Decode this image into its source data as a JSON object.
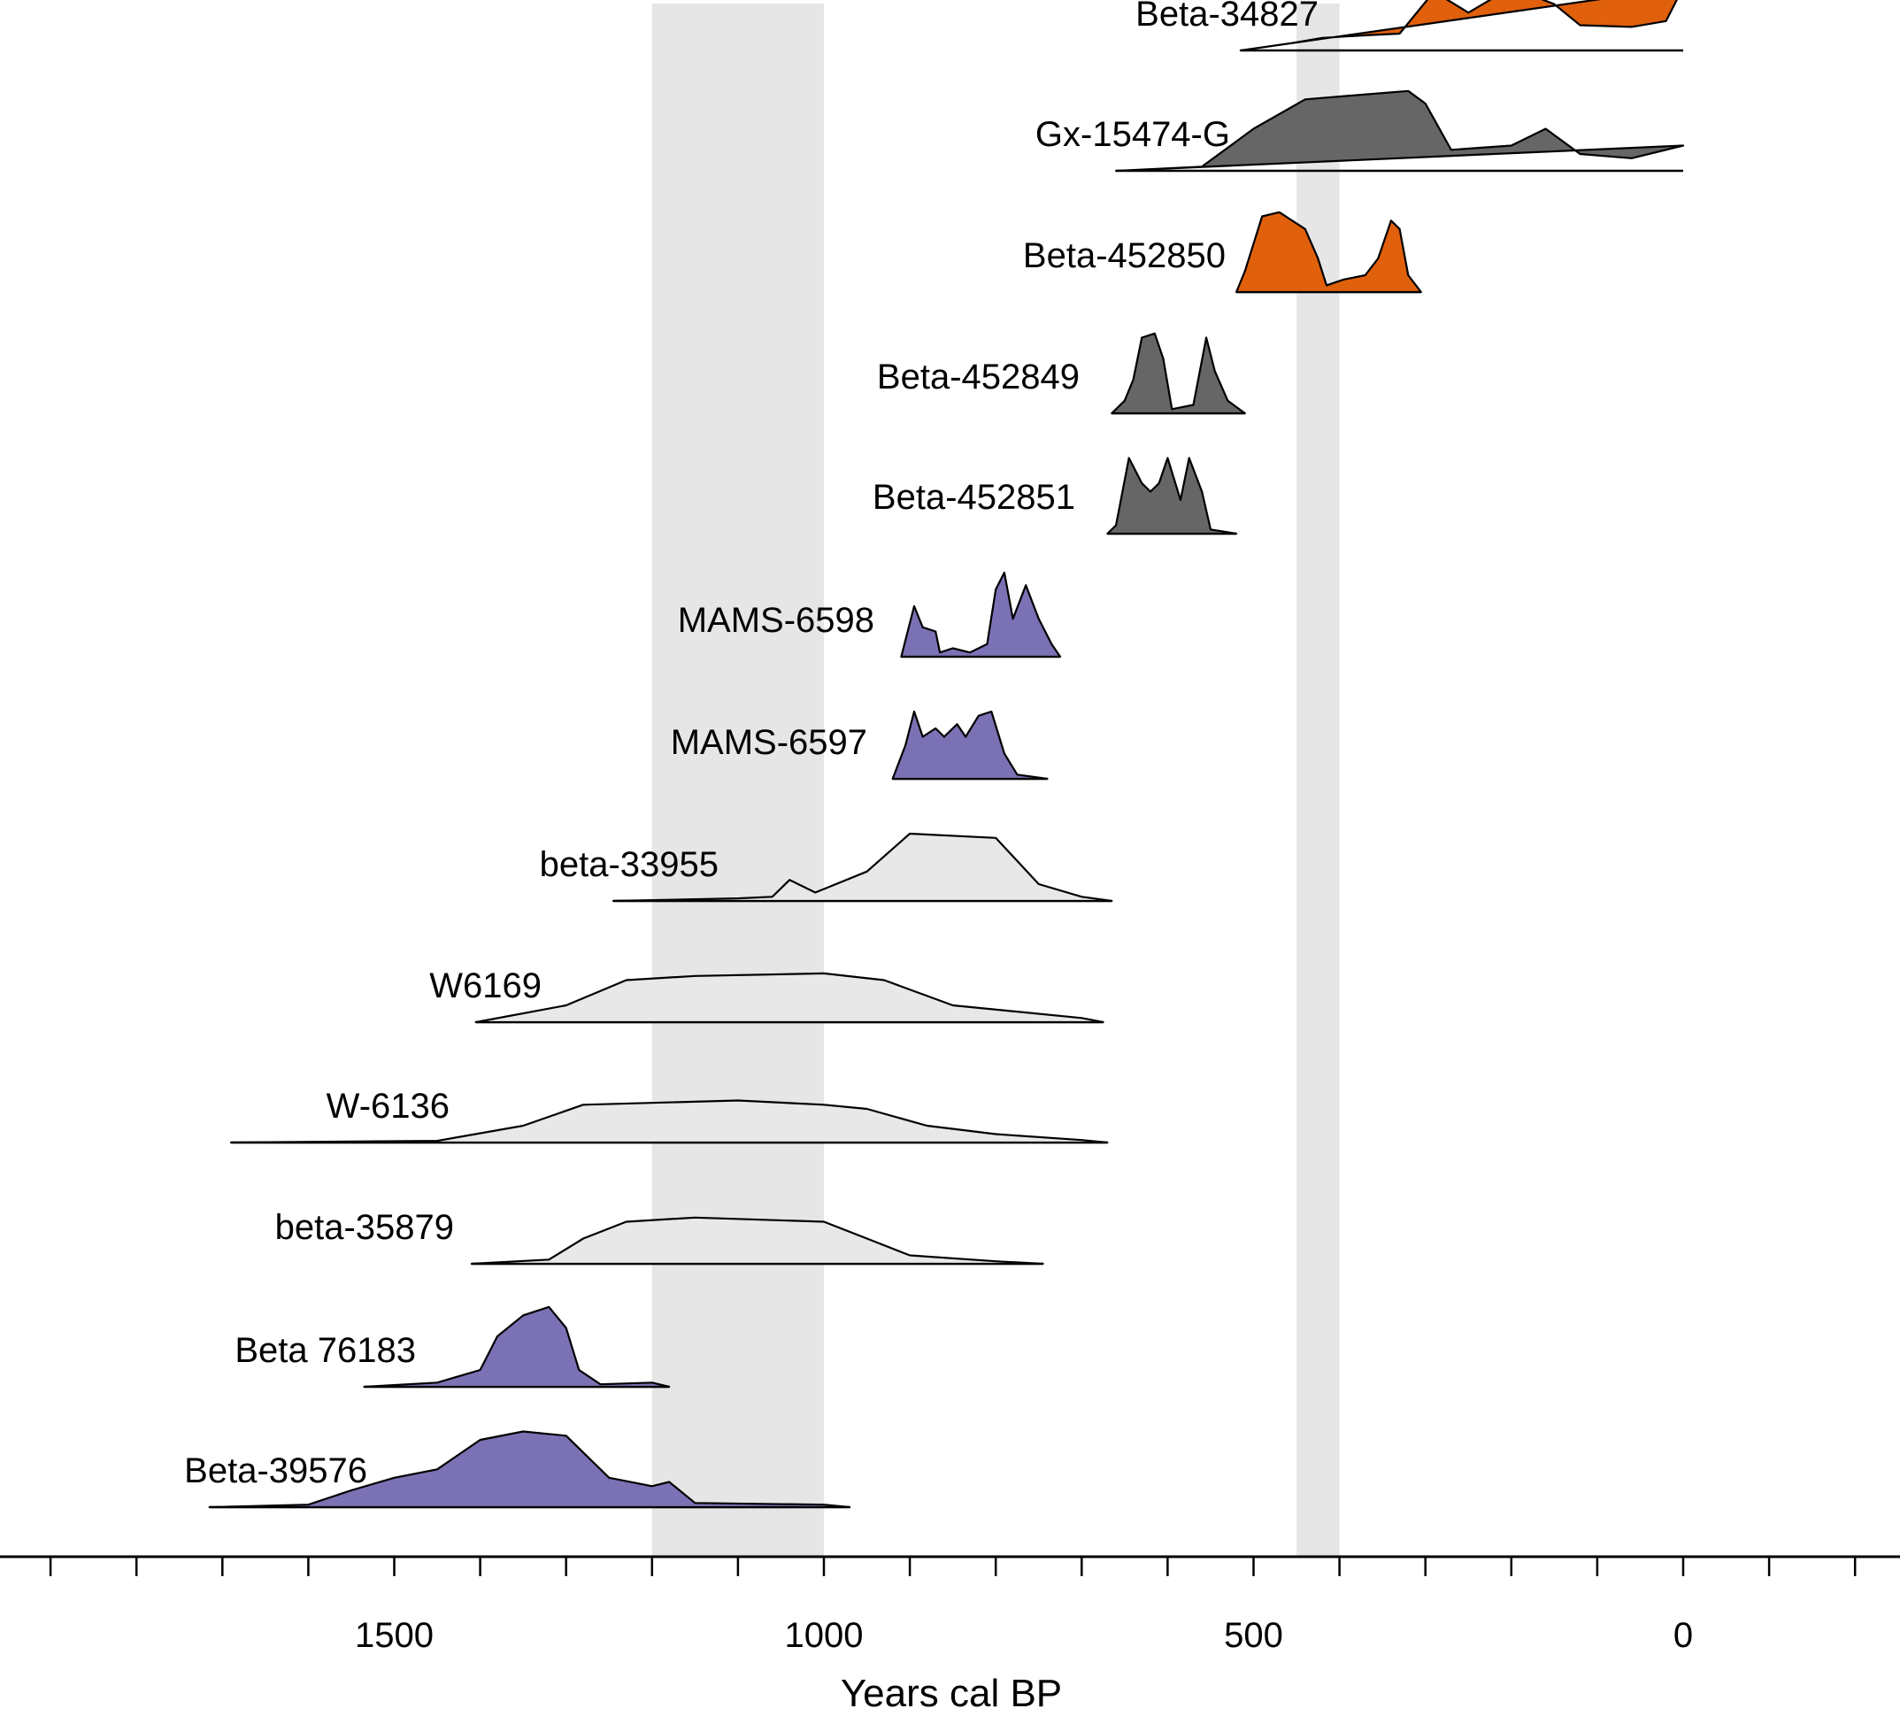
{
  "chart_data": {
    "type": "area",
    "title": "",
    "xlabel": "Years cal BP",
    "ylabel": "",
    "x_reversed": true,
    "xlim": [
      1910,
      -250
    ],
    "x_ticks": [
      1900,
      1800,
      1700,
      1600,
      1500,
      1400,
      1300,
      1200,
      1100,
      1000,
      900,
      800,
      700,
      600,
      500,
      400,
      300,
      200,
      100,
      0,
      -100,
      -200
    ],
    "x_tick_labels": [
      {
        "value": 1500,
        "text": "1500"
      },
      {
        "value": 1000,
        "text": "1000"
      },
      {
        "value": 500,
        "text": "500"
      },
      {
        "value": 0,
        "text": "0"
      }
    ],
    "grid": false,
    "legend": "none",
    "shaded_bands": [
      {
        "from": 1200,
        "to": 1000,
        "color": "#e6e6e6"
      },
      {
        "from": 450,
        "to": 400,
        "color": "#e6e6e6"
      }
    ],
    "colors": {
      "orange": "#e0600c",
      "dark": "#666666",
      "purple": "#7b72b5",
      "light": "#e8e8e8"
    },
    "series": [
      {
        "name": "Beta-34827",
        "color": "#e0600c",
        "range": [
          515,
          0
        ],
        "profile": [
          [
            515,
            0
          ],
          [
            460,
            0.08
          ],
          [
            420,
            0.15
          ],
          [
            370,
            0.18
          ],
          [
            330,
            0.2
          ],
          [
            290,
            0.7
          ],
          [
            250,
            0.45
          ],
          [
            200,
            0.75
          ],
          [
            150,
            0.55
          ],
          [
            120,
            0.3
          ],
          [
            60,
            0.28
          ],
          [
            20,
            0.35
          ],
          [
            0,
            0.75
          ]
        ]
      },
      {
        "name": "Gx-15474-G",
        "color": "#666666",
        "range": [
          660,
          0
        ],
        "profile": [
          [
            660,
            0
          ],
          [
            560,
            0.05
          ],
          [
            500,
            0.5
          ],
          [
            440,
            0.85
          ],
          [
            380,
            0.9
          ],
          [
            320,
            0.95
          ],
          [
            300,
            0.8
          ],
          [
            270,
            0.25
          ],
          [
            200,
            0.3
          ],
          [
            160,
            0.5
          ],
          [
            120,
            0.2
          ],
          [
            60,
            0.15
          ],
          [
            0,
            0.3
          ]
        ]
      },
      {
        "name": "Beta-452850",
        "color": "#e0600c",
        "range": [
          520,
          305
        ],
        "profile": [
          [
            520,
            0
          ],
          [
            510,
            0.25
          ],
          [
            490,
            0.9
          ],
          [
            470,
            0.95
          ],
          [
            440,
            0.75
          ],
          [
            425,
            0.4
          ],
          [
            415,
            0.08
          ],
          [
            395,
            0.15
          ],
          [
            370,
            0.2
          ],
          [
            355,
            0.4
          ],
          [
            340,
            0.85
          ],
          [
            330,
            0.75
          ],
          [
            320,
            0.2
          ],
          [
            305,
            0
          ]
        ]
      },
      {
        "name": "Beta-452849",
        "color": "#666666",
        "range": [
          665,
          510
        ],
        "profile": [
          [
            665,
            0
          ],
          [
            650,
            0.15
          ],
          [
            640,
            0.4
          ],
          [
            630,
            0.9
          ],
          [
            615,
            0.95
          ],
          [
            605,
            0.65
          ],
          [
            595,
            0.05
          ],
          [
            570,
            0.1
          ],
          [
            555,
            0.9
          ],
          [
            545,
            0.5
          ],
          [
            530,
            0.15
          ],
          [
            510,
            0
          ]
        ]
      },
      {
        "name": "Beta-452851",
        "color": "#666666",
        "range": [
          670,
          520
        ],
        "profile": [
          [
            670,
            0
          ],
          [
            660,
            0.1
          ],
          [
            645,
            0.9
          ],
          [
            630,
            0.6
          ],
          [
            620,
            0.5
          ],
          [
            610,
            0.6
          ],
          [
            600,
            0.9
          ],
          [
            585,
            0.4
          ],
          [
            575,
            0.9
          ],
          [
            560,
            0.5
          ],
          [
            550,
            0.05
          ],
          [
            520,
            0
          ]
        ]
      },
      {
        "name": "MAMS-6598",
        "color": "#7b72b5",
        "range": [
          910,
          725
        ],
        "profile": [
          [
            910,
            0
          ],
          [
            895,
            0.6
          ],
          [
            885,
            0.35
          ],
          [
            870,
            0.3
          ],
          [
            865,
            0.05
          ],
          [
            850,
            0.1
          ],
          [
            830,
            0.05
          ],
          [
            810,
            0.15
          ],
          [
            800,
            0.8
          ],
          [
            790,
            1
          ],
          [
            780,
            0.45
          ],
          [
            765,
            0.85
          ],
          [
            750,
            0.45
          ],
          [
            735,
            0.15
          ],
          [
            725,
            0
          ]
        ]
      },
      {
        "name": "MAMS-6597",
        "color": "#7b72b5",
        "range": [
          920,
          740
        ],
        "profile": [
          [
            920,
            0
          ],
          [
            905,
            0.4
          ],
          [
            895,
            0.8
          ],
          [
            885,
            0.5
          ],
          [
            870,
            0.6
          ],
          [
            860,
            0.5
          ],
          [
            845,
            0.65
          ],
          [
            835,
            0.5
          ],
          [
            820,
            0.75
          ],
          [
            805,
            0.8
          ],
          [
            790,
            0.3
          ],
          [
            775,
            0.05
          ],
          [
            740,
            0
          ]
        ]
      },
      {
        "name": "beta-33955",
        "color": "#e8e8e8",
        "range": [
          1245,
          665
        ],
        "profile": [
          [
            1245,
            0
          ],
          [
            1100,
            0.03
          ],
          [
            1060,
            0.05
          ],
          [
            1040,
            0.25
          ],
          [
            1010,
            0.1
          ],
          [
            950,
            0.35
          ],
          [
            900,
            0.8
          ],
          [
            800,
            0.75
          ],
          [
            750,
            0.2
          ],
          [
            700,
            0.05
          ],
          [
            665,
            0
          ]
        ]
      },
      {
        "name": "W6169",
        "color": "#e8e8e8",
        "range": [
          1405,
          675
        ],
        "profile": [
          [
            1405,
            0
          ],
          [
            1300,
            0.2
          ],
          [
            1230,
            0.5
          ],
          [
            1150,
            0.55
          ],
          [
            1000,
            0.58
          ],
          [
            930,
            0.5
          ],
          [
            850,
            0.2
          ],
          [
            700,
            0.05
          ],
          [
            675,
            0
          ]
        ]
      },
      {
        "name": "W-6136",
        "color": "#e8e8e8",
        "range": [
          1690,
          670
        ],
        "profile": [
          [
            1690,
            0
          ],
          [
            1450,
            0.02
          ],
          [
            1350,
            0.2
          ],
          [
            1280,
            0.45
          ],
          [
            1100,
            0.5
          ],
          [
            1000,
            0.45
          ],
          [
            950,
            0.4
          ],
          [
            880,
            0.2
          ],
          [
            800,
            0.1
          ],
          [
            700,
            0.03
          ],
          [
            670,
            0
          ]
        ]
      },
      {
        "name": "beta-35879",
        "color": "#e8e8e8",
        "range": [
          1410,
          745
        ],
        "profile": [
          [
            1410,
            0
          ],
          [
            1320,
            0.05
          ],
          [
            1280,
            0.3
          ],
          [
            1230,
            0.5
          ],
          [
            1150,
            0.55
          ],
          [
            1000,
            0.5
          ],
          [
            950,
            0.3
          ],
          [
            900,
            0.1
          ],
          [
            800,
            0.03
          ],
          [
            745,
            0
          ]
        ]
      },
      {
        "name": "Beta 76183",
        "color": "#7b72b5",
        "range": [
          1535,
          1180
        ],
        "profile": [
          [
            1535,
            0
          ],
          [
            1450,
            0.05
          ],
          [
            1400,
            0.2
          ],
          [
            1380,
            0.6
          ],
          [
            1350,
            0.85
          ],
          [
            1320,
            0.95
          ],
          [
            1300,
            0.7
          ],
          [
            1285,
            0.2
          ],
          [
            1260,
            0.03
          ],
          [
            1200,
            0.05
          ],
          [
            1180,
            0
          ]
        ]
      },
      {
        "name": "Beta-39576",
        "color": "#7b72b5",
        "range": [
          1715,
          970
        ],
        "profile": [
          [
            1715,
            0
          ],
          [
            1600,
            0.03
          ],
          [
            1550,
            0.2
          ],
          [
            1500,
            0.35
          ],
          [
            1450,
            0.45
          ],
          [
            1400,
            0.8
          ],
          [
            1350,
            0.9
          ],
          [
            1300,
            0.85
          ],
          [
            1250,
            0.35
          ],
          [
            1200,
            0.25
          ],
          [
            1180,
            0.3
          ],
          [
            1150,
            0.05
          ],
          [
            1000,
            0.03
          ],
          [
            970,
            0
          ]
        ]
      }
    ]
  }
}
